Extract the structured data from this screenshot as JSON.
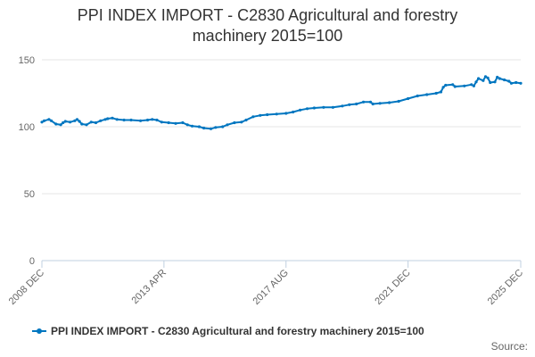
{
  "title_line1": "PPI INDEX IMPORT - C2830 Agricultural and forestry",
  "title_line2": "machinery 2015=100",
  "source": "Source:",
  "colors": {
    "series": "#0076c0",
    "grid": "#e6e6e6",
    "axis": "#c0d0e0",
    "text": "#666666"
  },
  "chart_data": {
    "type": "line",
    "title": "PPI INDEX IMPORT - C2830 Agricultural and forestry machinery 2015=100",
    "xlabel": "",
    "ylabel": "",
    "ylim": [
      0,
      150
    ],
    "yticks": [
      0,
      50,
      100,
      150
    ],
    "x_tick_labels": [
      "2008 DEC",
      "2013 APR",
      "2017 AUG",
      "2021 DEC",
      "2025 DEC"
    ],
    "grid": true,
    "legend": "bottom",
    "series": [
      {
        "name": "PPI INDEX IMPORT - C2830 Agricultural and forestry machinery 2015=100",
        "points": [
          [
            "2008 DEC",
            103.5
          ],
          [
            "2009 JAN",
            104.5
          ],
          [
            "2009 MAR",
            105.5
          ],
          [
            "2009 APR",
            104.5
          ],
          [
            "2009 JUN",
            102.0
          ],
          [
            "2009 AUG",
            101.5
          ],
          [
            "2009 SEP",
            103.0
          ],
          [
            "2009 OCT",
            104.0
          ],
          [
            "2009 DEC",
            103.5
          ],
          [
            "2010 FEB",
            104.5
          ],
          [
            "2010 MAR",
            105.5
          ],
          [
            "2010 APR",
            104.0
          ],
          [
            "2010 MAY",
            102.0
          ],
          [
            "2010 JUL",
            101.5
          ],
          [
            "2010 SEP",
            103.5
          ],
          [
            "2010 NOV",
            103.0
          ],
          [
            "2011 JAN",
            104.5
          ],
          [
            "2011 MAR",
            105.5
          ],
          [
            "2011 APR",
            106.0
          ],
          [
            "2011 JUN",
            106.5
          ],
          [
            "2011 AUG",
            105.5
          ],
          [
            "2011 NOV",
            105.0
          ],
          [
            "2012 FEB",
            105.0
          ],
          [
            "2012 JUN",
            104.5
          ],
          [
            "2012 SEP",
            105.0
          ],
          [
            "2012 NOV",
            105.5
          ],
          [
            "2013 JAN",
            105.0
          ],
          [
            "2013 MAR",
            103.5
          ],
          [
            "2013 JUN",
            103.0
          ],
          [
            "2013 SEP",
            102.5
          ],
          [
            "2013 DEC",
            103.0
          ],
          [
            "2014 FEB",
            101.5
          ],
          [
            "2014 APR",
            100.5
          ],
          [
            "2014 JUL",
            100.0
          ],
          [
            "2014 SEP",
            99.0
          ],
          [
            "2014 DEC",
            98.5
          ],
          [
            "2015 FEB",
            99.5
          ],
          [
            "2015 MAY",
            100.0
          ],
          [
            "2015 JUL",
            101.5
          ],
          [
            "2015 OCT",
            103.0
          ],
          [
            "2016 JAN",
            103.5
          ],
          [
            "2016 MAR",
            105.0
          ],
          [
            "2016 JUN",
            107.5
          ],
          [
            "2016 SEP",
            108.5
          ],
          [
            "2016 DEC",
            109.0
          ],
          [
            "2017 APR",
            109.5
          ],
          [
            "2017 AUG",
            110.0
          ],
          [
            "2017 NOV",
            111.0
          ],
          [
            "2018 FEB",
            112.5
          ],
          [
            "2018 MAY",
            113.5
          ],
          [
            "2018 AUG",
            114.0
          ],
          [
            "2018 DEC",
            114.5
          ],
          [
            "2019 APR",
            114.5
          ],
          [
            "2019 AUG",
            115.5
          ],
          [
            "2019 NOV",
            116.5
          ],
          [
            "2020 FEB",
            117.0
          ],
          [
            "2020 MAY",
            118.5
          ],
          [
            "2020 AUG",
            118.5
          ],
          [
            "2020 SEP",
            117.0
          ],
          [
            "2020 DEC",
            117.5
          ],
          [
            "2021 APR",
            118.0
          ],
          [
            "2021 AUG",
            119.0
          ],
          [
            "2021 DEC",
            121.0
          ],
          [
            "2022 APR",
            123.0
          ],
          [
            "2022 AUG",
            124.0
          ],
          [
            "2022 DEC",
            125.0
          ],
          [
            "2023 FEB",
            126.0
          ],
          [
            "2023 MAR",
            129.5
          ],
          [
            "2023 APR",
            131.0
          ],
          [
            "2023 JUL",
            131.5
          ],
          [
            "2023 AUG",
            130.0
          ],
          [
            "2023 DEC",
            130.5
          ],
          [
            "2024 MAR",
            131.5
          ],
          [
            "2024 APR",
            130.5
          ],
          [
            "2024 MAY",
            133.5
          ],
          [
            "2024 JUN",
            136.0
          ],
          [
            "2024 AUG",
            134.5
          ],
          [
            "2024 SEP",
            137.5
          ],
          [
            "2024 OCT",
            136.5
          ],
          [
            "2024 NOV",
            133.0
          ],
          [
            "2025 JAN",
            133.5
          ],
          [
            "2025 FEB",
            137.0
          ],
          [
            "2025 MAR",
            136.0
          ],
          [
            "2025 MAY",
            135.0
          ],
          [
            "2025 JUL",
            134.0
          ],
          [
            "2025 AUG",
            132.5
          ],
          [
            "2025 OCT",
            133.0
          ],
          [
            "2025 DEC",
            132.5
          ]
        ]
      }
    ]
  }
}
